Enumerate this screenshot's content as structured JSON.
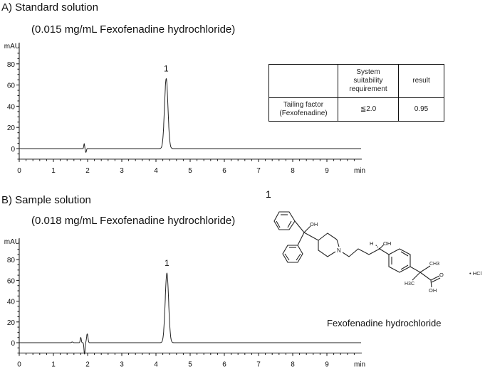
{
  "chart_data": [
    {
      "type": "line",
      "title": "A) Standard solution",
      "subtitle": "(0.015 mg/mL Fexofenadine hydrochloride)",
      "ylabel": "mAU",
      "xlabel": "min",
      "xlim": [
        0,
        10
      ],
      "ylim": [
        -10,
        90
      ],
      "x_ticks": [
        "0",
        "1",
        "2",
        "3",
        "4",
        "5",
        "6",
        "7",
        "8",
        "9"
      ],
      "y_ticks": [
        "0",
        "20",
        "40",
        "60",
        "80"
      ],
      "grid": false,
      "peaks": [
        {
          "label": "1",
          "time": 4.3,
          "height": 66,
          "width": 0.05
        },
        {
          "time": 1.9,
          "height": 4.5,
          "width": 0.012
        },
        {
          "time": 1.95,
          "height": -3.5,
          "width": 0.015
        }
      ]
    },
    {
      "type": "line",
      "title": "B) Sample solution",
      "subtitle": "(0.018 mg/mL Fexofenadine hydrochloride)",
      "ylabel": "mAU",
      "xlabel": "min",
      "xlim": [
        0,
        10
      ],
      "ylim": [
        -10,
        90
      ],
      "x_ticks": [
        "0",
        "1",
        "2",
        "3",
        "4",
        "5",
        "6",
        "7",
        "8",
        "9"
      ],
      "y_ticks": [
        "0",
        "20",
        "40",
        "60",
        "80"
      ],
      "grid": false,
      "peaks": [
        {
          "label": "1",
          "time": 4.32,
          "height": 67,
          "width": 0.05
        },
        {
          "time": 1.55,
          "height": 0.7,
          "width": 0.02
        },
        {
          "time": 1.8,
          "height": 5,
          "width": 0.015
        },
        {
          "time": 1.91,
          "height": -11,
          "width": 0.015
        },
        {
          "time": 1.99,
          "height": 8.5,
          "width": 0.02
        }
      ]
    }
  ],
  "table": {
    "headers": [
      "",
      "System suitability requirement",
      "result"
    ],
    "rows": [
      [
        "Tailing factor (Fexofenadine)",
        "≦2.0",
        "0.95"
      ]
    ]
  },
  "structure": {
    "number": "1",
    "name": "Fexofenadine hydrochloride",
    "atom_labels": {
      "oh1": "OH",
      "n": "N",
      "h": "H",
      "oh2": "OH",
      "ch3": "CH3",
      "h3c": "H3C",
      "o": "O",
      "oh3": "OH",
      "hcl": "• HCl"
    }
  }
}
